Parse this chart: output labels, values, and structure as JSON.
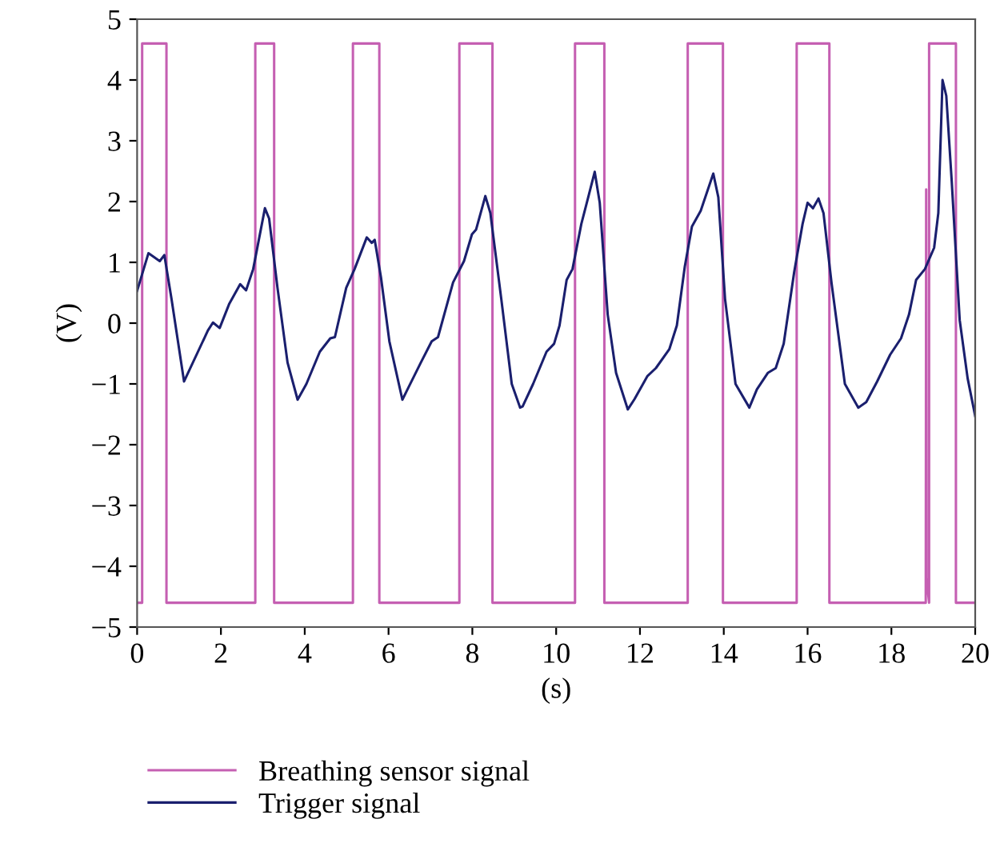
{
  "chart_data": {
    "type": "line",
    "xlabel": "(s)",
    "ylabel": "(V)",
    "xlim": [
      0,
      20
    ],
    "xticks": [
      0,
      2,
      4,
      6,
      8,
      10,
      12,
      14,
      16,
      18,
      20
    ],
    "ylim": [
      -5,
      5
    ],
    "yticks": [
      -5,
      -4,
      -3,
      -2,
      -1,
      0,
      1,
      2,
      3,
      4,
      5
    ],
    "grid": false,
    "legend": "bottom",
    "line_style": "solid",
    "marker": "none",
    "series": [
      {
        "name": "Breathing sensor signal",
        "color": "#c55fb2",
        "x": [
          0,
          0.12,
          0.12,
          0.7,
          0.7,
          2.82,
          2.82,
          3.27,
          3.27,
          5.15,
          5.15,
          5.78,
          5.78,
          7.69,
          7.69,
          8.48,
          8.48,
          10.45,
          10.45,
          11.15,
          11.15,
          13.14,
          13.14,
          13.98,
          13.98,
          15.74,
          15.74,
          16.52,
          16.52,
          18.82,
          18.83,
          18.84,
          18.9,
          18.9,
          19.54,
          19.54,
          20
        ],
        "values": [
          -4.6,
          -4.6,
          4.6,
          4.6,
          -4.6,
          -4.6,
          4.6,
          4.6,
          -4.6,
          -4.6,
          4.6,
          4.6,
          -4.6,
          -4.6,
          4.6,
          4.6,
          -4.6,
          -4.6,
          4.6,
          4.6,
          -4.6,
          -4.6,
          4.6,
          4.6,
          -4.6,
          -4.6,
          4.6,
          4.6,
          -4.6,
          -4.6,
          2.2,
          -4.2,
          -4.6,
          4.6,
          4.6,
          -4.6,
          -4.6
        ]
      },
      {
        "name": "Trigger signal",
        "color": "#1a1f6e",
        "x": [
          0,
          0.27,
          0.54,
          0.65,
          0.82,
          1.12,
          1.69,
          1.81,
          1.97,
          2.2,
          2.46,
          2.6,
          2.77,
          3.05,
          3.15,
          3.35,
          3.59,
          3.83,
          4.04,
          4.36,
          4.61,
          4.72,
          4.99,
          5.19,
          5.48,
          5.6,
          5.67,
          5.82,
          6.02,
          6.33,
          6.77,
          7.03,
          7.18,
          7.54,
          7.8,
          7.99,
          8.09,
          8.31,
          8.43,
          8.69,
          8.94,
          9.14,
          9.2,
          9.45,
          9.77,
          9.95,
          10.08,
          10.25,
          10.39,
          10.6,
          10.78,
          10.92,
          11.04,
          11.23,
          11.43,
          11.71,
          11.87,
          12.18,
          12.38,
          12.7,
          12.88,
          13.07,
          13.24,
          13.45,
          13.75,
          13.87,
          14.03,
          14.28,
          14.61,
          14.79,
          15.05,
          15.24,
          15.43,
          15.68,
          15.88,
          16.0,
          16.13,
          16.26,
          16.38,
          16.57,
          16.89,
          17.21,
          17.4,
          17.66,
          17.97,
          18.23,
          18.42,
          18.59,
          18.8,
          19.02,
          19.12,
          19.22,
          19.31,
          19.44,
          19.63,
          19.82,
          20.0
        ],
        "values": [
          0.53,
          1.15,
          1.02,
          1.12,
          0.4,
          -0.96,
          -0.12,
          0.01,
          -0.08,
          0.32,
          0.64,
          0.54,
          0.89,
          1.89,
          1.72,
          0.58,
          -0.65,
          -1.26,
          -1.0,
          -0.47,
          -0.25,
          -0.23,
          0.58,
          0.89,
          1.41,
          1.32,
          1.37,
          0.75,
          -0.3,
          -1.26,
          -0.65,
          -0.3,
          -0.23,
          0.67,
          1.02,
          1.46,
          1.54,
          2.09,
          1.81,
          0.4,
          -1.0,
          -1.39,
          -1.37,
          -1.0,
          -0.47,
          -0.34,
          -0.04,
          0.71,
          0.89,
          1.63,
          2.11,
          2.49,
          1.98,
          0.14,
          -0.82,
          -1.42,
          -1.25,
          -0.87,
          -0.74,
          -0.43,
          -0.04,
          0.93,
          1.59,
          1.85,
          2.46,
          2.07,
          0.4,
          -1.0,
          -1.39,
          -1.09,
          -0.82,
          -0.74,
          -0.34,
          0.84,
          1.63,
          1.98,
          1.89,
          2.05,
          1.81,
          0.67,
          -1.0,
          -1.39,
          -1.3,
          -0.96,
          -0.52,
          -0.25,
          0.14,
          0.71,
          0.89,
          1.24,
          1.81,
          4.0,
          3.74,
          2.33,
          0.05,
          -0.91,
          -1.53
        ]
      }
    ]
  }
}
